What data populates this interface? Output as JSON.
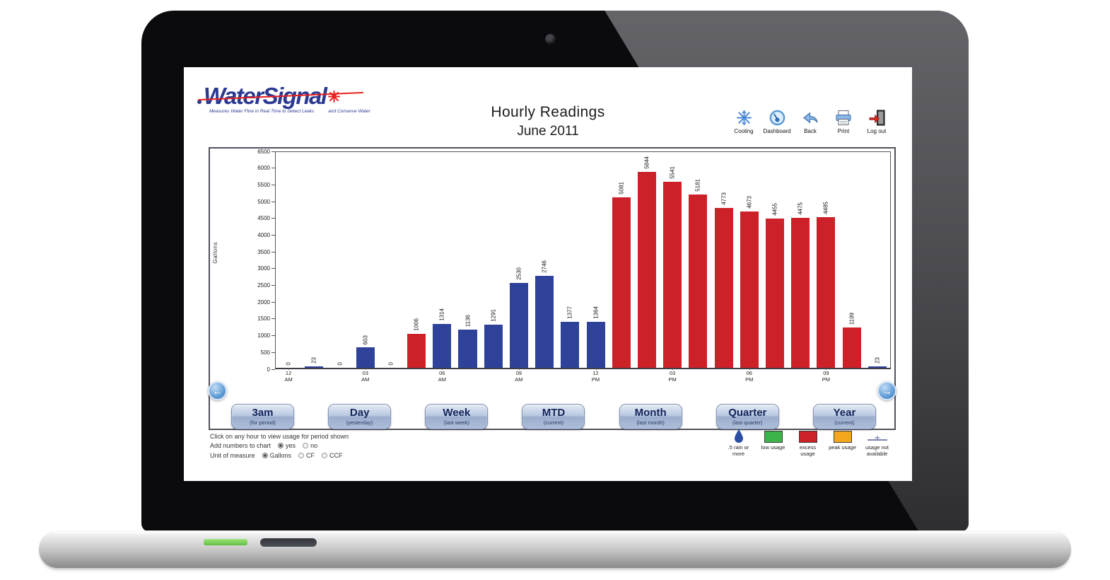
{
  "logo": {
    "brand": "WaterSignal",
    "tagline_left": "Measures Water Flow in Real Time to Detect Leaks",
    "tagline_right": "and Conserve Water"
  },
  "header": {
    "title_line1": "Hourly Readings",
    "title_line2": "June 2011"
  },
  "toolbar": {
    "items": [
      {
        "label": "Cooling"
      },
      {
        "label": "Dashboard"
      },
      {
        "label": "Back"
      },
      {
        "label": "Print"
      },
      {
        "label": "Log out"
      }
    ]
  },
  "chart_data": {
    "type": "bar",
    "title": "Hourly Readings June 2011",
    "xlabel": "",
    "ylabel": "Gallons",
    "ylim": [
      0,
      6500
    ],
    "ytick_step": 500,
    "grid": false,
    "x": [
      "12 AM",
      "01 AM",
      "02 AM",
      "03 AM",
      "04 AM",
      "05 AM",
      "06 AM",
      "07 AM",
      "08 AM",
      "09 AM",
      "10 AM",
      "11 AM",
      "12 PM",
      "01 PM",
      "02 PM",
      "03 PM",
      "04 PM",
      "05 PM",
      "06 PM",
      "07 PM",
      "08 PM",
      "09 PM",
      "10 PM",
      "11 PM"
    ],
    "x_ticks_shown": [
      "12 AM",
      "03 AM",
      "06 AM",
      "09 AM",
      "12 PM",
      "03 PM",
      "06 PM",
      "09 PM"
    ],
    "values": [
      0,
      23,
      0,
      603,
      0,
      1006,
      1314,
      1136,
      1291,
      2530,
      2746,
      1377,
      1364,
      5081,
      5844,
      5541,
      5181,
      4773,
      4673,
      4455,
      4475,
      4485,
      1199,
      23
    ],
    "colors": [
      "blue",
      "blue",
      "blue",
      "blue",
      "blue",
      "red",
      "blue",
      "blue",
      "blue",
      "blue",
      "blue",
      "blue",
      "blue",
      "red",
      "red",
      "red",
      "red",
      "red",
      "red",
      "red",
      "red",
      "red",
      "red",
      "blue"
    ],
    "color_map": {
      "blue": "#2f4299",
      "red": "#cc2128"
    }
  },
  "nav": {
    "prev_glyph": "←",
    "next_glyph": "→"
  },
  "period_buttons": [
    {
      "label": "3am",
      "sub": "(for period)"
    },
    {
      "label": "Day",
      "sub": "(yesterday)"
    },
    {
      "label": "Week",
      "sub": "(last week)"
    },
    {
      "label": "MTD",
      "sub": "(current)"
    },
    {
      "label": "Month",
      "sub": "(last month)"
    },
    {
      "label": "Quarter",
      "sub": "(last quarter)"
    },
    {
      "label": "Year",
      "sub": "(current)"
    }
  ],
  "footer": {
    "hint": "Click on any hour to view usage for period shown",
    "add_numbers_label": "Add numbers to chart",
    "add_numbers_options": [
      {
        "label": "yes",
        "selected": true
      },
      {
        "label": "no",
        "selected": false
      }
    ],
    "unit_label": "Unit of measure",
    "unit_options": [
      {
        "label": "Gallons",
        "selected": true
      },
      {
        "label": "CF",
        "selected": false
      },
      {
        "label": "CCF",
        "selected": false
      }
    ]
  },
  "legend": [
    {
      "type": "drop",
      "label": ".5 rain or more",
      "color": "#2b4ea0"
    },
    {
      "type": "swatch",
      "label": "low usage",
      "color": "#3bb54a"
    },
    {
      "type": "swatch",
      "label": "excess usage",
      "color": "#cc2128"
    },
    {
      "type": "swatch",
      "label": "peak usage",
      "color": "#f4a71d"
    },
    {
      "type": "line",
      "label": "usage not available",
      "color": "#7d86ad"
    }
  ]
}
